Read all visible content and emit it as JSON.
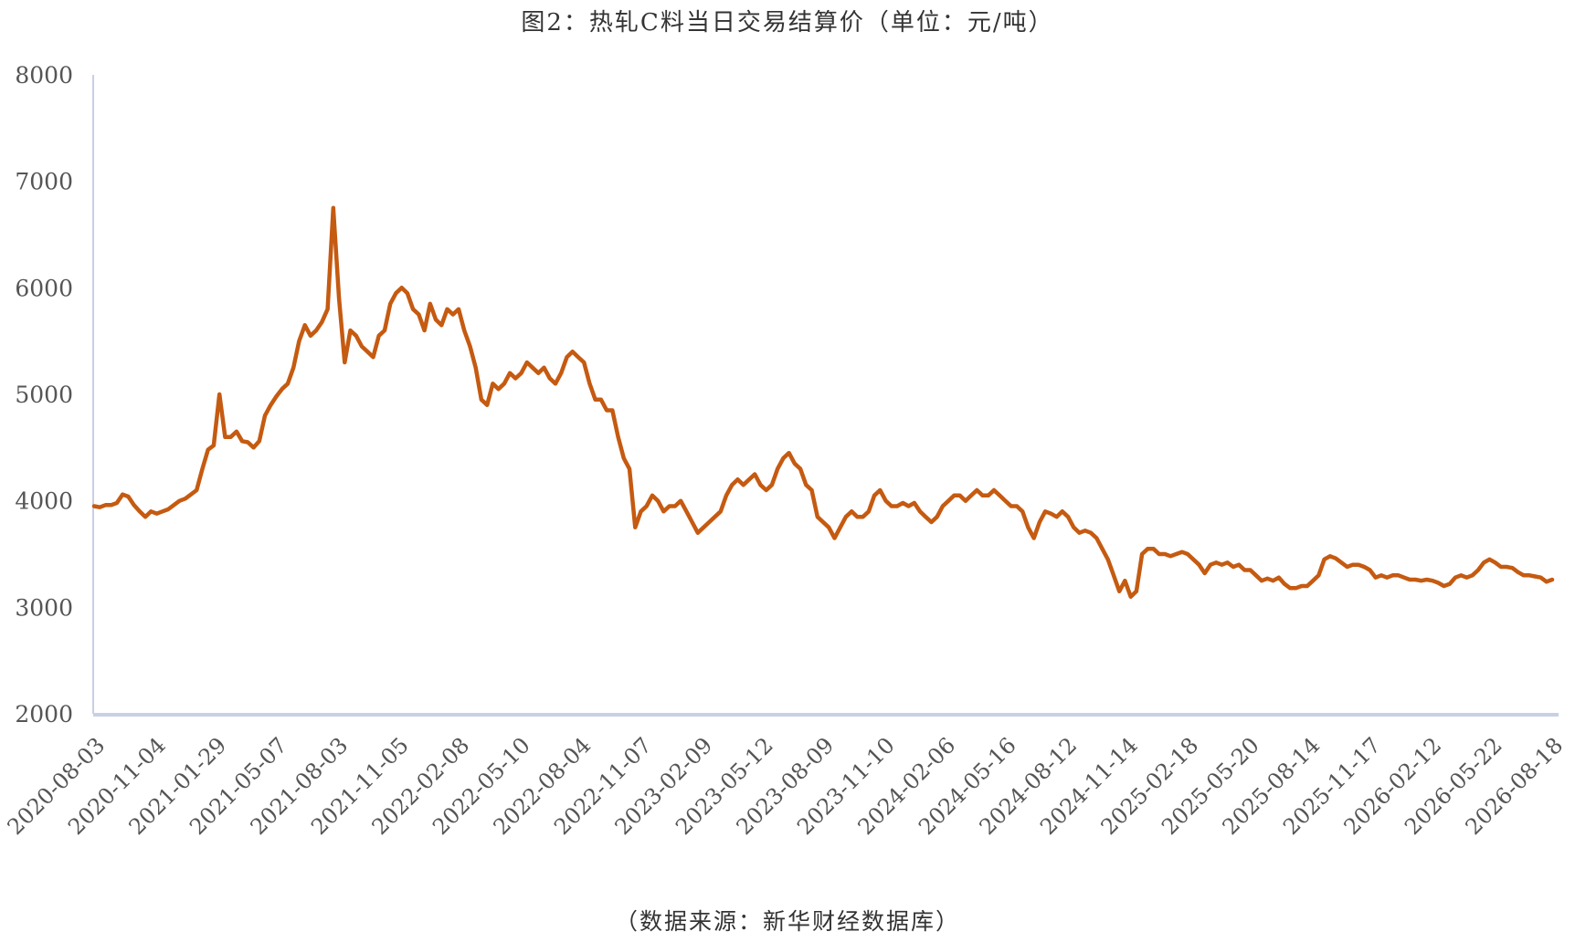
{
  "chart_data": {
    "type": "line",
    "title": "图2：热轧C料当日交易结算价（单位：元/吨）",
    "source": "（数据来源：新华财经数据库）",
    "ylim": [
      2000,
      8000
    ],
    "yticks": [
      "8000",
      "7000",
      "6000",
      "5000",
      "4000",
      "3000",
      "2000"
    ],
    "x_tick_labels": [
      "2020-08-03",
      "2020-11-04",
      "2021-01-29",
      "2021-05-07",
      "2021-08-03",
      "2021-11-05",
      "2022-02-08",
      "2022-05-10",
      "2022-08-04",
      "2022-11-07",
      "2023-02-09",
      "2023-05-12",
      "2023-08-09",
      "2023-11-10",
      "2024-02-06",
      "2024-05-16",
      "2024-08-12",
      "2024-11-14",
      "2025-02-18",
      "2025-05-20",
      "2025-08-14",
      "2025-11-17",
      "2026-02-12",
      "2026-05-22",
      "2026-08-18"
    ],
    "grid": false,
    "line_color": "#C55A11",
    "series": [
      {
        "values": [
          3950,
          3940,
          3960,
          3960,
          3980,
          4060,
          4040,
          3960,
          3900,
          3850,
          3900,
          3880,
          3900,
          3920,
          3960,
          4000,
          4020,
          4060,
          4100,
          4300,
          4480,
          4520,
          5000,
          4600,
          4600,
          4650,
          4560,
          4550,
          4500,
          4560,
          4800,
          4900,
          4980,
          5050,
          5100,
          5250,
          5500,
          5650,
          5550,
          5600,
          5680,
          5800,
          6750,
          5900,
          5300,
          5600,
          5550,
          5450,
          5400,
          5350,
          5550,
          5600,
          5850,
          5950,
          6000,
          5950,
          5800,
          5750,
          5600,
          5850,
          5700,
          5650,
          5800,
          5750,
          5800,
          5600,
          5450,
          5250,
          4950,
          4900,
          5100,
          5050,
          5100,
          5200,
          5150,
          5200,
          5300,
          5250,
          5200,
          5250,
          5150,
          5100,
          5200,
          5350,
          5400,
          5350,
          5300,
          5100,
          4950,
          4950,
          4850,
          4850,
          4600,
          4400,
          4300,
          3750,
          3900,
          3950,
          4050,
          4000,
          3900,
          3950,
          3950,
          4000,
          3900,
          3800,
          3700,
          3750,
          3800,
          3850,
          3900,
          4050,
          4150,
          4200,
          4150,
          4200,
          4250,
          4150,
          4100,
          4150,
          4300,
          4400,
          4450,
          4350,
          4300,
          4150,
          4100,
          3850,
          3800,
          3750,
          3650,
          3750,
          3850,
          3900,
          3850,
          3850,
          3900,
          4050,
          4100,
          4000,
          3950,
          3950,
          3980,
          3950,
          3980,
          3900,
          3850,
          3800,
          3850,
          3950,
          4000,
          4050,
          4050,
          4000,
          4050,
          4100,
          4050,
          4050,
          4100,
          4050,
          4000,
          3950,
          3950,
          3900,
          3750,
          3650,
          3800,
          3900,
          3880,
          3850,
          3900,
          3850,
          3750,
          3700,
          3720,
          3700,
          3650,
          3550,
          3450,
          3300,
          3150,
          3250,
          3100,
          3150,
          3500,
          3550,
          3550,
          3500,
          3500,
          3480,
          3500,
          3520,
          3500,
          3450,
          3400,
          3320,
          3400,
          3420,
          3400,
          3420,
          3380,
          3400,
          3350,
          3350,
          3300,
          3250,
          3270,
          3250,
          3280,
          3220,
          3180,
          3180,
          3200,
          3200,
          3250,
          3300,
          3450,
          3480,
          3460,
          3420,
          3380,
          3400,
          3400,
          3380,
          3350,
          3280,
          3300,
          3280,
          3300,
          3300,
          3280,
          3260,
          3260,
          3250,
          3260,
          3250,
          3230,
          3200,
          3220,
          3280,
          3300,
          3280,
          3300,
          3350,
          3420,
          3450,
          3420,
          3380,
          3380,
          3370,
          3330,
          3300,
          3300,
          3290,
          3280,
          3240,
          3260
        ]
      }
    ]
  }
}
